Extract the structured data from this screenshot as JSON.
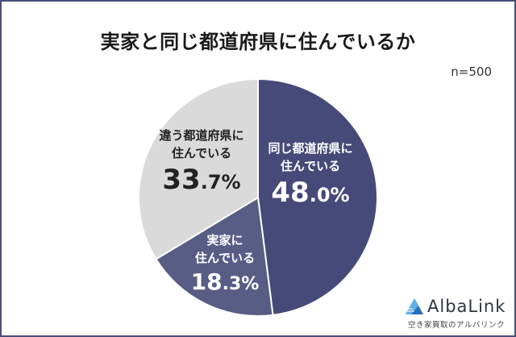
{
  "title": "実家と同じ都道府県に住んでいるか",
  "sample_size": "n=500",
  "slices": [
    {
      "category_line1": "同じ都道府県に",
      "category_line2": "住んでいる",
      "pct_int": "48",
      "pct_dec": ".0%",
      "color": "#464a78"
    },
    {
      "category_line1": "実家に",
      "category_line2": "住んでいる",
      "pct_int": "18",
      "pct_dec": ".3%",
      "color": "#585d86"
    },
    {
      "category_line1": "違う都道府県に",
      "category_line2": "住んでいる",
      "pct_int": "33",
      "pct_dec": ".7%",
      "color": "#dadada"
    }
  ],
  "logo": {
    "name": "AlbaLink",
    "tagline": "空き家買取のアルバリンク",
    "color": "#2a6fb8"
  },
  "chart_data": {
    "type": "pie",
    "title": "実家と同じ都道府県に住んでいるか",
    "annotations": [
      "n=500"
    ],
    "categories": [
      "同じ都道府県に住んでいる",
      "実家に住んでいる",
      "違う都道府県に住んでいる"
    ],
    "values": [
      48.0,
      18.3,
      33.7
    ],
    "unit": "%",
    "colors": [
      "#464a78",
      "#585d86",
      "#dadada"
    ],
    "start_angle": "12 o'clock, clockwise",
    "legend": "none (labels inside slices)"
  }
}
